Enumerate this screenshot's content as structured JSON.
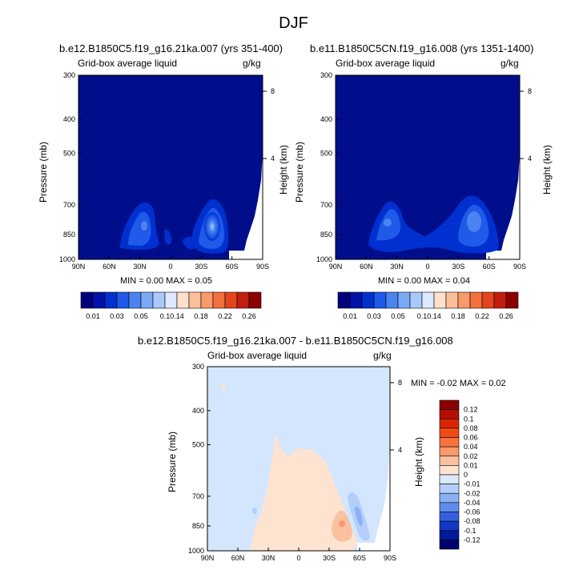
{
  "figure": {
    "title": "DJF"
  },
  "panels": [
    {
      "title": "b.e12.B1850C5.f19_g16.21ka.007 (yrs 351-400)",
      "left_label": "Grid-box average liquid",
      "right_label": "g/kg",
      "ylabel": "Pressure (mb)",
      "y2label": "Height (km)",
      "stats": "MIN =   0.00   MAX =   0.05"
    },
    {
      "title": "b.e11.B1850C5CN.f19_g16.008 (yrs 1351-1400)",
      "left_label": "Grid-box average liquid",
      "right_label": "g/kg",
      "ylabel": "Pressure (mb)",
      "y2label": "Height (km)",
      "stats": "MIN =   0.00   MAX =   0.04"
    },
    {
      "title": "b.e12.B1850C5.f19_g16.21ka.007 - b.e11.B1850C5CN.f19_g16.008",
      "left_label": "Grid-box average liquid",
      "right_label": "g/kg",
      "ylabel": "Pressure (mb)",
      "y2label": "Height (km)",
      "stats": "MIN =  -0.02   MAX =   0.02"
    }
  ],
  "chart_data": [
    {
      "type": "heatmap",
      "title": "b.e12.B1850C5.f19_g16.21ka.007 (yrs 351-400)",
      "xlabel": "",
      "ylabel": "Pressure (mb)",
      "y2label": "Height (km)",
      "x_ticks": [
        "90N",
        "60N",
        "30N",
        "0",
        "30S",
        "60S",
        "90S"
      ],
      "y_ticks": [
        300,
        400,
        500,
        700,
        850,
        1000
      ],
      "y2_ticks": [
        8,
        4
      ],
      "ylim": [
        1000,
        300
      ],
      "min": 0.0,
      "max": 0.05,
      "units": "g/kg",
      "colorbar_levels": [
        "0.01",
        "0.03",
        "0.05",
        "0.1",
        "0.14",
        "0.18",
        "0.22",
        "0.26"
      ]
    },
    {
      "type": "heatmap",
      "title": "b.e11.B1850C5CN.f19_g16.008 (yrs 1351-1400)",
      "xlabel": "",
      "ylabel": "Pressure (mb)",
      "y2label": "Height (km)",
      "x_ticks": [
        "90N",
        "60N",
        "30N",
        "0",
        "30S",
        "60S",
        "90S"
      ],
      "y_ticks": [
        300,
        400,
        500,
        700,
        850,
        1000
      ],
      "y2_ticks": [
        8,
        4
      ],
      "ylim": [
        1000,
        300
      ],
      "min": 0.0,
      "max": 0.04,
      "units": "g/kg",
      "colorbar_levels": [
        "0.01",
        "0.03",
        "0.05",
        "0.1",
        "0.14",
        "0.18",
        "0.22",
        "0.26"
      ]
    },
    {
      "type": "heatmap",
      "title": "b.e12.B1850C5.f19_g16.21ka.007 - b.e11.B1850C5CN.f19_g16.008",
      "xlabel": "",
      "ylabel": "Pressure (mb)",
      "y2label": "Height (km)",
      "x_ticks": [
        "90N",
        "60N",
        "30N",
        "0",
        "30S",
        "60S",
        "90S"
      ],
      "y_ticks": [
        300,
        400,
        500,
        700,
        850,
        1000
      ],
      "y2_ticks": [
        8,
        4
      ],
      "ylim": [
        1000,
        300
      ],
      "min": -0.02,
      "max": 0.02,
      "units": "g/kg",
      "colorbar_levels": [
        "0.12",
        "0.1",
        "0.08",
        "0.06",
        "0.04",
        "0.02",
        "0.01",
        "0",
        "-0.01",
        "-0.02",
        "-0.04",
        "-0.06",
        "-0.08",
        "-0.1",
        "-0.12"
      ]
    }
  ],
  "colors": {
    "abs_bar": [
      "#00007f",
      "#0012a8",
      "#0030d0",
      "#1f5ae8",
      "#4b84f0",
      "#7aa9f5",
      "#a9c9fa",
      "#dce9ff",
      "#ffe0cc",
      "#fcbf9a",
      "#fa9a6a",
      "#f4703d",
      "#e3441d",
      "#c31d0d",
      "#8c0000"
    ],
    "diff_bar": [
      "#8c0000",
      "#b30f00",
      "#d92600",
      "#f04a14",
      "#f9723e",
      "#fa9a6a",
      "#fbc0a0",
      "#fde3d0",
      "#dbe8ff",
      "#b3cefa",
      "#8bb0f4",
      "#5f8cef",
      "#3460e0",
      "#0f38c4",
      "#001a9a",
      "#00006f"
    ],
    "background_abs": "#000e8c",
    "background_diff": "#d4e6fd"
  }
}
